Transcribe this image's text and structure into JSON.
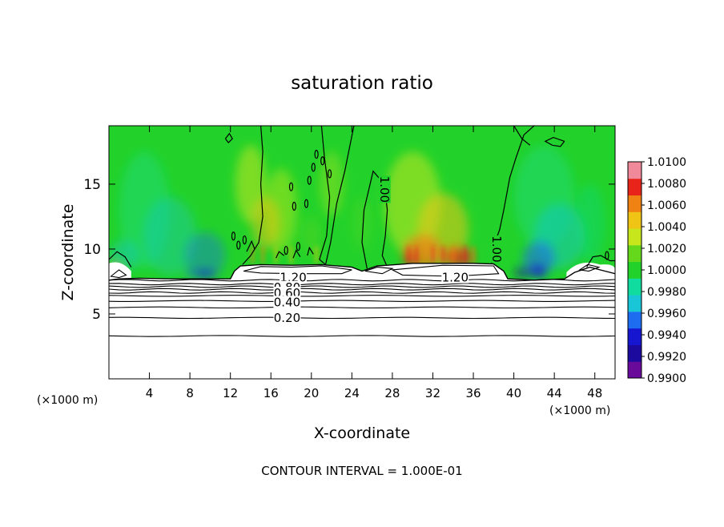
{
  "chart_data": {
    "type": "heatmap",
    "title": "saturation ratio",
    "xlabel": "X-coordinate",
    "ylabel": "Z-coordinate",
    "x_unit_left": "(×1000 m)",
    "x_unit_right": "(×1000 m)",
    "footer": "CONTOUR INTERVAL = 1.000E-01",
    "xlim": [
      0,
      50
    ],
    "ylim": [
      0,
      19.5
    ],
    "x_ticks": [
      4,
      8,
      12,
      16,
      20,
      24,
      28,
      32,
      36,
      40,
      44,
      48
    ],
    "y_ticks": [
      5,
      10,
      15
    ],
    "colorbar": {
      "range": [
        0.99,
        1.01
      ],
      "tick_labels": [
        "1.0100",
        "1.0080",
        "1.0060",
        "1.0040",
        "1.0020",
        "1.0000",
        "0.9980",
        "0.9960",
        "0.9940",
        "0.9920",
        "0.9900"
      ],
      "colors": [
        "#6a0a9a",
        "#1c0a9e",
        "#1616d0",
        "#1e6cf0",
        "#19c6d8",
        "#10dca0",
        "#22d22a",
        "#66d81c",
        "#c8e61c",
        "#f0c414",
        "#f08214",
        "#e8241a",
        "#f08a9a"
      ]
    },
    "base_value": 1.0,
    "base_color": "#22d22a",
    "contour_labels": [
      {
        "text": "1.20",
        "x": 18.2,
        "y": 7.8
      },
      {
        "text": "1.20",
        "x": 34.2,
        "y": 7.8
      },
      {
        "text": "0.80",
        "x": 17.6,
        "y": 7.05
      },
      {
        "text": "0.60",
        "x": 17.6,
        "y": 6.6
      },
      {
        "text": "0.40",
        "x": 17.6,
        "y": 5.9
      },
      {
        "text": "0.20",
        "x": 17.6,
        "y": 4.7
      },
      {
        "text": "1.00",
        "x": 27.2,
        "y": 14.6
      },
      {
        "text": "1.00",
        "x": 38.3,
        "y": 10.0
      }
    ],
    "layer_contours_z": [
      7.6,
      7.3,
      7.1,
      6.9,
      6.65,
      6.4,
      6.0,
      5.5,
      4.7,
      3.3
    ]
  }
}
